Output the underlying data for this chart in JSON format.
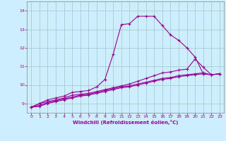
{
  "xlabel": "Windchill (Refroidissement éolien,°C)",
  "bg_color": "#cceeff",
  "line_color": "#990099",
  "grid_color": "#aacccc",
  "xlim": [
    -0.5,
    23.5
  ],
  "ylim": [
    8.5,
    14.5
  ],
  "xticks": [
    0,
    1,
    2,
    3,
    4,
    5,
    6,
    7,
    8,
    9,
    10,
    11,
    12,
    13,
    14,
    15,
    16,
    17,
    18,
    19,
    20,
    21,
    22,
    23
  ],
  "yticks": [
    9,
    10,
    11,
    12,
    13,
    14
  ],
  "lines": [
    {
      "x": [
        0,
        1,
        2,
        3,
        4,
        5,
        6,
        7,
        8,
        9,
        10,
        11,
        12,
        13,
        14,
        15,
        16,
        17,
        18,
        19,
        20,
        21,
        22,
        23
      ],
      "y": [
        8.8,
        9.0,
        9.2,
        9.3,
        9.4,
        9.6,
        9.65,
        9.7,
        9.9,
        10.3,
        11.65,
        13.25,
        13.3,
        13.7,
        13.7,
        13.7,
        13.2,
        12.7,
        12.4,
        12.0,
        11.5,
        10.6,
        10.55,
        10.6
      ]
    },
    {
      "x": [
        0,
        1,
        2,
        3,
        4,
        5,
        6,
        7,
        8,
        9,
        10,
        11,
        12,
        13,
        14,
        15,
        16,
        17,
        18,
        19,
        20,
        21,
        22,
        23
      ],
      "y": [
        8.8,
        9.0,
        9.1,
        9.2,
        9.3,
        9.45,
        9.5,
        9.55,
        9.65,
        9.75,
        9.85,
        9.95,
        10.05,
        10.2,
        10.35,
        10.5,
        10.65,
        10.7,
        10.8,
        10.85,
        11.4,
        10.95,
        10.55,
        10.6
      ]
    },
    {
      "x": [
        0,
        1,
        2,
        3,
        4,
        5,
        6,
        7,
        8,
        9,
        10,
        11,
        12,
        13,
        14,
        15,
        16,
        17,
        18,
        19,
        20,
        21,
        22,
        23
      ],
      "y": [
        8.8,
        8.9,
        9.05,
        9.15,
        9.25,
        9.35,
        9.45,
        9.5,
        9.6,
        9.7,
        9.8,
        9.9,
        9.95,
        10.05,
        10.15,
        10.25,
        10.35,
        10.4,
        10.5,
        10.55,
        10.6,
        10.65,
        10.55,
        10.6
      ]
    },
    {
      "x": [
        0,
        1,
        2,
        3,
        4,
        5,
        6,
        7,
        8,
        9,
        10,
        11,
        12,
        13,
        14,
        15,
        16,
        17,
        18,
        19,
        20,
        21,
        22,
        23
      ],
      "y": [
        8.8,
        8.85,
        9.0,
        9.1,
        9.2,
        9.3,
        9.4,
        9.45,
        9.55,
        9.65,
        9.75,
        9.85,
        9.9,
        10.0,
        10.1,
        10.2,
        10.3,
        10.35,
        10.45,
        10.5,
        10.55,
        10.6,
        10.55,
        10.6
      ]
    }
  ]
}
